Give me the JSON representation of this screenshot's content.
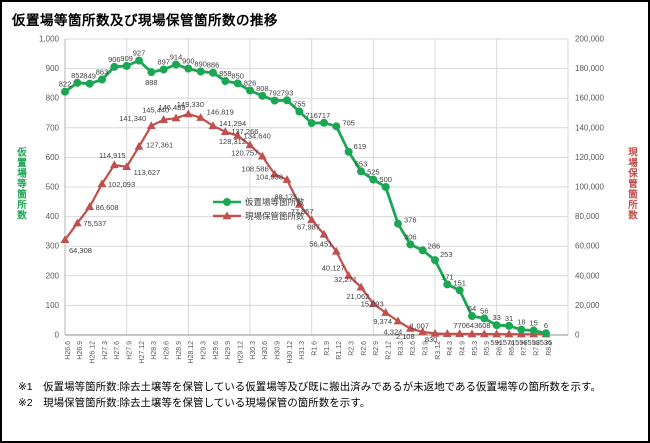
{
  "title": "仮置場等箇所数及び現場保管箇所数の推移",
  "footnotes": [
    "※1　仮置場等箇所数:除去土壌等を保管している仮置場等及び既に搬出済みであるが未返地である仮置場等の箇所数を示す。",
    "※2　現場保管箇所数:除去土壌等を保管している現場保管の箇所数を示す。"
  ],
  "colors": {
    "green_series": "#1aa653",
    "red_series": "#c0504d",
    "data_label": "#3f3f3f",
    "axis_text": "#595959",
    "gridline": "#d9d9d9"
  },
  "chart_data": {
    "type": "line",
    "categories": [
      "H26.6",
      "H26.9",
      "H26.12",
      "H27.3",
      "H27.6",
      "H27.9",
      "H27.12",
      "H28.3",
      "H28.6",
      "H28.9",
      "H28.12",
      "H29.3",
      "H29.6",
      "H29.9",
      "H29.12",
      "H30.3",
      "H30.6",
      "H30.9",
      "H30.12",
      "H31.3",
      "R1.6",
      "R1.9",
      "R1.12",
      "R2.3",
      "R2.6",
      "R2.9",
      "R2.12",
      "R3.3",
      "R3.6",
      "R3.9",
      "R3.12",
      "R4.3",
      "R4.9",
      "R5.3",
      "R5.9",
      "R6.3",
      "R6.9",
      "R7.3",
      "R7.9",
      "R8.3"
    ],
    "series": [
      {
        "name": "仮置場等箇所数",
        "axis": "left",
        "color": "#1aa653",
        "marker": "circle",
        "values": [
          822,
          852,
          849,
          863,
          906,
          909,
          927,
          888,
          897,
          914,
          900,
          890,
          886,
          858,
          850,
          826,
          808,
          792,
          793,
          755,
          716,
          717,
          705,
          619,
          553,
          525,
          500,
          376,
          306,
          286,
          253,
          171,
          151,
          64,
          56,
          33,
          31,
          18,
          15,
          6
        ]
      },
      {
        "name": "現場保管箇所数",
        "axis": "right",
        "color": "#c0504d",
        "marker": "triangle",
        "values": [
          64308,
          75537,
          86608,
          102093,
          114915,
          113627,
          127361,
          141340,
          145440,
          146489,
          149330,
          146819,
          141294,
          137266,
          134640,
          128312,
          120757,
          108586,
          104938,
          88175,
          77857,
          67987,
          56451,
          40127,
          32271,
          21062,
          15093,
          9374,
          4324,
          2108,
          1007,
          830,
          770,
          643,
          608,
          591,
          571,
          556,
          553,
          535
        ]
      }
    ],
    "left_axis": {
      "title": "仮置場等箇所数",
      "min": 0,
      "max": 1000,
      "step": 100,
      "color": "#1aa653"
    },
    "right_axis": {
      "title": "現場保管箇所数",
      "min": 0,
      "max": 200000,
      "step": 20000,
      "color": "#c0504d"
    },
    "legend": [
      "仮置場等箇所数",
      "現場保管箇所数"
    ],
    "legend_position": "inside-middle-left",
    "grid": true
  }
}
